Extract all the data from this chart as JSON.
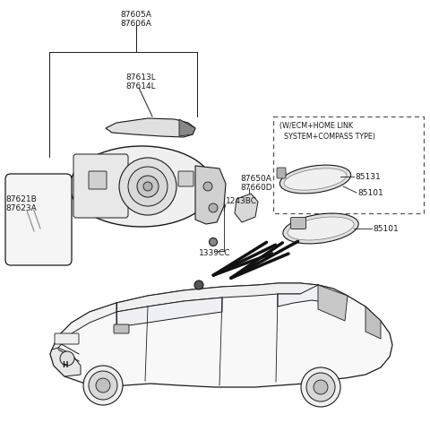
{
  "bg_color": "#ffffff",
  "line_color": "#1a1a1a",
  "text_color": "#1a1a1a",
  "label_fontsize": 6.5,
  "parts": {
    "87605A_87606A": "87605A\n87606A",
    "87613L_87614L": "87613L\n87614L",
    "87621B_87623A": "87621B\n87623A",
    "87650A_87660D": "87650A\n87660D",
    "1243BC": "1243BC",
    "1339CC": "1339CC",
    "85131": "85131",
    "85101_inbox": "85101",
    "85101_main": "85101",
    "wcm": "(W/ECM+HOME LINK\nSYSTEM+COMPASS TYPE)"
  }
}
